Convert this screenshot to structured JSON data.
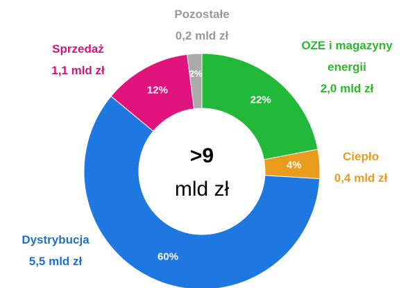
{
  "chart_data": {
    "type": "donut",
    "categories": [
      "OZE i magazyny energii",
      "Ciepło",
      "Dystrybucja",
      "Sprzedaż",
      "Pozostałe"
    ],
    "values": [
      22,
      4,
      60,
      12,
      2
    ],
    "value_labels": [
      "22%",
      "4%",
      "60%",
      "12%",
      "2%"
    ],
    "amounts": [
      "2,0 mld zł",
      "0,4 mld zł",
      "5,5 mld zł",
      "1,1 mld zł",
      "0,2 mld zł"
    ],
    "colors": [
      "#22b83a",
      "#e99b1c",
      "#1f78e0",
      "#e0147c",
      "#aaaaaa"
    ],
    "center_label": [
      ">9",
      "mld zł"
    ]
  }
}
